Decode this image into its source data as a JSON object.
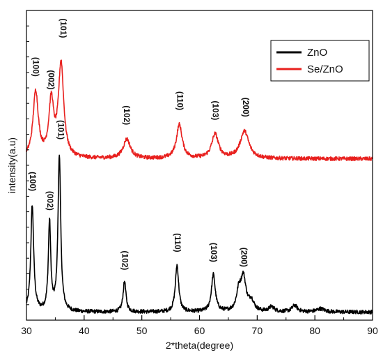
{
  "chart_data": {
    "type": "line",
    "title": "",
    "xlabel": "2*theta(degree)",
    "ylabel": "intensity(a.u)",
    "xlim": [
      30,
      90
    ],
    "x_ticks": [
      30,
      40,
      50,
      60,
      70,
      80,
      90
    ],
    "y_ticks_shown": false,
    "grid": false,
    "legend_position": "top-right",
    "series": [
      {
        "name": "ZnO",
        "color": "#000000",
        "baseline": 0.05,
        "noise": 0.012,
        "peaks": [
          {
            "x": 31.0,
            "height": 0.66,
            "width": 0.3
          },
          {
            "x": 34.0,
            "height": 0.55,
            "width": 0.25
          },
          {
            "x": 35.7,
            "height": 0.97,
            "width": 0.28
          },
          {
            "x": 47.0,
            "height": 0.19,
            "width": 0.3
          },
          {
            "x": 56.1,
            "height": 0.29,
            "width": 0.35
          },
          {
            "x": 62.4,
            "height": 0.23,
            "width": 0.4
          },
          {
            "x": 66.8,
            "height": 0.11,
            "width": 0.45
          },
          {
            "x": 67.6,
            "height": 0.21,
            "width": 0.55
          },
          {
            "x": 69.0,
            "height": 0.06,
            "width": 0.55
          },
          {
            "x": 72.5,
            "height": 0.03,
            "width": 0.55
          },
          {
            "x": 76.5,
            "height": 0.04,
            "width": 0.55
          },
          {
            "x": 81.0,
            "height": 0.02,
            "width": 0.8
          }
        ]
      },
      {
        "name": "Se/ZnO",
        "color": "#e8201e",
        "baseline": 1.0,
        "noise": 0.012,
        "peaks": [
          {
            "x": 31.6,
            "height": 0.41,
            "width": 0.55
          },
          {
            "x": 34.3,
            "height": 0.34,
            "width": 0.5
          },
          {
            "x": 36.0,
            "height": 0.58,
            "width": 0.55
          },
          {
            "x": 47.4,
            "height": 0.12,
            "width": 0.75
          },
          {
            "x": 56.5,
            "height": 0.21,
            "width": 0.6
          },
          {
            "x": 62.7,
            "height": 0.15,
            "width": 0.7
          },
          {
            "x": 67.8,
            "height": 0.17,
            "width": 0.9
          }
        ]
      }
    ],
    "annotations": [
      {
        "text": "(100)",
        "x": 31.0,
        "y": 0.86
      },
      {
        "text": "(002)",
        "x": 34.0,
        "y": 0.74
      },
      {
        "text": "(101)",
        "x": 35.9,
        "y": 1.18
      },
      {
        "text": "(102)",
        "x": 47.0,
        "y": 0.37
      },
      {
        "text": "(110)",
        "x": 56.1,
        "y": 0.48
      },
      {
        "text": "(103)",
        "x": 62.4,
        "y": 0.42
      },
      {
        "text": "(200)",
        "x": 67.6,
        "y": 0.39
      },
      {
        "text": "(100)",
        "x": 31.5,
        "y": 1.57
      },
      {
        "text": "(002)",
        "x": 34.2,
        "y": 1.49
      },
      {
        "text": "(101)",
        "x": 36.3,
        "y": 1.81
      },
      {
        "text": "(102)",
        "x": 47.3,
        "y": 1.27
      },
      {
        "text": "(110)",
        "x": 56.5,
        "y": 1.36
      },
      {
        "text": "(103)",
        "x": 62.7,
        "y": 1.3
      },
      {
        "text": "(200)",
        "x": 67.9,
        "y": 1.32
      }
    ]
  }
}
